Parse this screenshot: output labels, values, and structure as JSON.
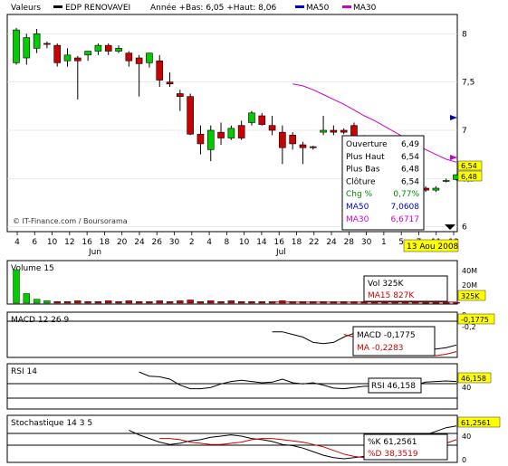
{
  "header": {
    "valeurs_label": "Valeurs",
    "name": "EDP RENOVAVEI",
    "stats": "Année +Bas: 6,05 +Haut: 8,06",
    "ma50_label": "MA50",
    "ma30_label": "MA30"
  },
  "copyright": "© IT-Finance.com / Boursorama",
  "date_badge": "13 Aou 2008",
  "price_labels": {
    "last": "6,54",
    "ma": "6,48"
  },
  "tooltip": {
    "rows": [
      {
        "label": "Ouverture",
        "value": "6,49",
        "color": "#000000"
      },
      {
        "label": "Plus Haut",
        "value": "6,54",
        "color": "#000000"
      },
      {
        "label": "Plus Bas",
        "value": "6,48",
        "color": "#000000"
      },
      {
        "label": "Clôture",
        "value": "6,54",
        "color": "#000000"
      },
      {
        "label": "Chg %",
        "value": "0,77%",
        "color": "#008800"
      },
      {
        "label": "MA50",
        "value": "7,0608",
        "color": "#0000cc"
      },
      {
        "label": "MA30",
        "value": "6,6717",
        "color": "#cc00cc"
      }
    ]
  },
  "volume_panel": {
    "title": "Volume 15",
    "box_vol": "Vol 325K",
    "box_ma": "MA15 827K",
    "label": "325K",
    "ticks": [
      "40M",
      "20M"
    ]
  },
  "macd_panel": {
    "title": "MACD 12 26 9",
    "box_macd": "MACD -0,1775",
    "box_ma": "MA -0,2283",
    "label": "-0,1775",
    "ticks": [
      "0",
      "-0,2"
    ]
  },
  "rsi_panel": {
    "title": "RSI 14",
    "box": "RSI 46,158",
    "label": "46,158",
    "ticks": [
      "40"
    ]
  },
  "stoch_panel": {
    "title": "Stochastique 14 3 5",
    "box_k": "%K 61,2561",
    "box_d": "%D 38,3519",
    "label": "61,2561",
    "ticks": [
      "40",
      "0"
    ]
  },
  "colors": {
    "up": "#00cc00",
    "down": "#cc0000",
    "ma50": "#0000cc",
    "ma30": "#cc00cc",
    "badge": "#ffff00"
  },
  "chart_data": {
    "type": "candlestick",
    "title": "EDP RENOVAVEI",
    "y_ticks": [
      "8",
      "7,5",
      "7",
      "6,5",
      "6"
    ],
    "ylim": [
      5.95,
      8.2
    ],
    "x_tick_labels": [
      "4",
      "6",
      "10",
      "12",
      "16",
      "18",
      "20",
      "24",
      "26",
      "30",
      "2",
      "4",
      "8",
      "10",
      "14",
      "16",
      "18",
      "22",
      "24",
      "28",
      "30",
      "1",
      "5",
      "7",
      "11",
      "13"
    ],
    "months": [
      "Jun",
      "Jul"
    ],
    "candles": [
      {
        "o": 7.7,
        "h": 8.06,
        "l": 7.68,
        "c": 8.04
      },
      {
        "o": 7.75,
        "h": 8.0,
        "l": 7.68,
        "c": 7.96
      },
      {
        "o": 7.85,
        "h": 8.05,
        "l": 7.8,
        "c": 8.0
      },
      {
        "o": 7.9,
        "h": 7.92,
        "l": 7.85,
        "c": 7.89
      },
      {
        "o": 7.88,
        "h": 7.9,
        "l": 7.66,
        "c": 7.7
      },
      {
        "o": 7.72,
        "h": 7.85,
        "l": 7.66,
        "c": 7.78
      },
      {
        "o": 7.75,
        "h": 7.77,
        "l": 7.32,
        "c": 7.72
      },
      {
        "o": 7.78,
        "h": 7.82,
        "l": 7.72,
        "c": 7.82
      },
      {
        "o": 7.82,
        "h": 7.9,
        "l": 7.78,
        "c": 7.88
      },
      {
        "o": 7.88,
        "h": 7.9,
        "l": 7.78,
        "c": 7.82
      },
      {
        "o": 7.82,
        "h": 7.88,
        "l": 7.8,
        "c": 7.85
      },
      {
        "o": 7.8,
        "h": 7.82,
        "l": 7.66,
        "c": 7.72
      },
      {
        "o": 7.75,
        "h": 7.78,
        "l": 7.35,
        "c": 7.69
      },
      {
        "o": 7.7,
        "h": 7.8,
        "l": 7.65,
        "c": 7.8
      },
      {
        "o": 7.72,
        "h": 7.78,
        "l": 7.45,
        "c": 7.52
      },
      {
        "o": 7.5,
        "h": 7.6,
        "l": 7.45,
        "c": 7.48
      },
      {
        "o": 7.38,
        "h": 7.42,
        "l": 7.2,
        "c": 7.35
      },
      {
        "o": 7.35,
        "h": 7.38,
        "l": 6.95,
        "c": 6.96
      },
      {
        "o": 6.96,
        "h": 7.05,
        "l": 6.75,
        "c": 6.86
      },
      {
        "o": 6.8,
        "h": 7.05,
        "l": 6.68,
        "c": 7.0
      },
      {
        "o": 6.98,
        "h": 7.08,
        "l": 6.85,
        "c": 6.92
      },
      {
        "o": 6.92,
        "h": 7.05,
        "l": 6.9,
        "c": 7.02
      },
      {
        "o": 7.05,
        "h": 7.1,
        "l": 6.9,
        "c": 6.92
      },
      {
        "o": 7.08,
        "h": 7.2,
        "l": 7.05,
        "c": 7.18
      },
      {
        "o": 7.15,
        "h": 7.18,
        "l": 7.05,
        "c": 7.06
      },
      {
        "o": 7.05,
        "h": 7.15,
        "l": 6.95,
        "c": 7.0
      },
      {
        "o": 6.98,
        "h": 7.05,
        "l": 6.65,
        "c": 6.82
      },
      {
        "o": 6.95,
        "h": 6.98,
        "l": 6.8,
        "c": 6.86
      },
      {
        "o": 6.85,
        "h": 6.88,
        "l": 6.65,
        "c": 6.82
      },
      {
        "o": 6.83,
        "h": 6.84,
        "l": 6.8,
        "c": 6.82
      },
      {
        "o": 6.98,
        "h": 7.15,
        "l": 6.95,
        "c": 7.0
      },
      {
        "o": 7.0,
        "h": 7.05,
        "l": 6.95,
        "c": 6.98
      },
      {
        "o": 7.0,
        "h": 7.02,
        "l": 6.96,
        "c": 6.98
      },
      {
        "o": 7.05,
        "h": 7.08,
        "l": 6.82,
        "c": 6.85
      },
      {
        "o": 6.9,
        "h": 6.95,
        "l": 6.75,
        "c": 6.82
      },
      {
        "o": 6.8,
        "h": 6.85,
        "l": 6.48,
        "c": 6.6
      },
      {
        "o": 6.55,
        "h": 6.62,
        "l": 6.38,
        "c": 6.44
      },
      {
        "o": 6.42,
        "h": 6.46,
        "l": 6.38,
        "c": 6.44
      },
      {
        "o": 6.42,
        "h": 6.48,
        "l": 6.35,
        "c": 6.45
      },
      {
        "o": 6.48,
        "h": 6.6,
        "l": 6.4,
        "c": 6.52
      },
      {
        "o": 6.4,
        "h": 6.42,
        "l": 6.36,
        "c": 6.38
      },
      {
        "o": 6.38,
        "h": 6.42,
        "l": 6.36,
        "c": 6.4
      },
      {
        "o": 6.48,
        "h": 6.5,
        "l": 6.46,
        "c": 6.48
      },
      {
        "o": 6.49,
        "h": 6.54,
        "l": 6.48,
        "c": 6.54
      }
    ],
    "ma30": [
      7.48,
      7.46,
      7.42,
      7.37,
      7.32,
      7.27,
      7.21,
      7.15,
      7.1,
      7.04,
      6.98,
      6.92,
      6.86,
      6.8,
      6.75,
      6.7,
      6.67
    ],
    "volume": [
      42,
      12,
      5,
      3,
      2,
      2,
      3,
      2,
      2,
      3,
      2,
      3,
      2,
      2,
      3,
      2,
      3,
      4,
      2,
      3,
      2,
      3,
      2,
      2,
      2,
      2,
      3,
      2,
      2,
      2,
      2,
      2,
      2,
      2,
      2,
      2,
      2,
      2,
      2,
      2,
      1,
      1,
      1,
      1
    ],
    "volume_ma15": [
      1.3,
      1.3,
      1.3,
      1.3,
      1.3,
      1.3,
      1.3,
      1.3,
      1.3,
      1.3,
      1.3,
      1.3,
      1.3,
      1.3,
      1.3,
      1.3,
      1.3,
      1.3,
      1.3
    ],
    "macd": [
      -0.08,
      -0.08,
      -0.1,
      -0.12,
      -0.16,
      -0.17,
      -0.16,
      -0.12,
      -0.09,
      -0.08,
      -0.07,
      -0.09,
      -0.13,
      -0.16,
      -0.19,
      -0.2,
      -0.21,
      -0.2,
      -0.18
    ],
    "macd_signal": [
      -0.1,
      -0.12,
      -0.14,
      -0.16,
      -0.18,
      -0.21,
      -0.23,
      -0.24,
      -0.25,
      -0.26,
      -0.25,
      -0.23
    ],
    "rsi": [
      62,
      55,
      54,
      50,
      40,
      34,
      34,
      36,
      42,
      46,
      48,
      46,
      44,
      45,
      50,
      44,
      42,
      44,
      40,
      35,
      34,
      36,
      38,
      38,
      42,
      38,
      35,
      40,
      45,
      46,
      47,
      46
    ],
    "stoch_k": [
      54,
      46,
      40,
      34,
      30,
      32,
      36,
      38,
      42,
      44,
      46,
      44,
      40,
      38,
      35,
      30,
      28,
      24,
      18,
      12,
      8,
      6,
      8,
      10,
      14,
      18,
      24,
      30,
      38,
      46,
      52,
      58,
      61
    ],
    "stoch_d": [
      40,
      40,
      38,
      34,
      32,
      30,
      30,
      32,
      34,
      38,
      40,
      40,
      38,
      36,
      34,
      30,
      26,
      20,
      14,
      10,
      8,
      7,
      8,
      10,
      12,
      16,
      20,
      26,
      32,
      38
    ]
  }
}
